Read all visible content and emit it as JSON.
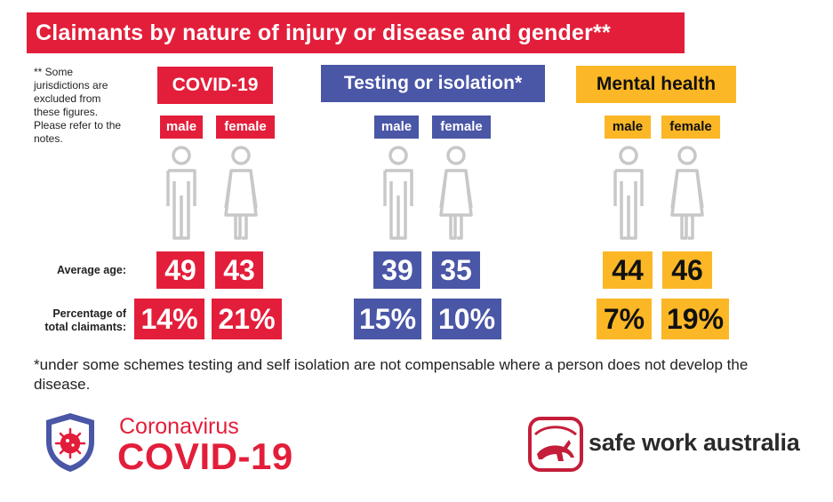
{
  "title": "Claimants by nature of injury or disease and gender**",
  "side_note": "** Some jurisdictions are excluded from these figures. Please refer to the notes.",
  "row_labels": {
    "average_age": "Average age:",
    "percentage": "Percentage of total claimants:"
  },
  "categories": [
    {
      "name": "COVID-19",
      "color": "#e31e3a",
      "male_label": "male",
      "female_label": "female",
      "male_age": "49",
      "female_age": "43",
      "male_pct": "14%",
      "female_pct": "21%"
    },
    {
      "name": "Testing or isolation*",
      "color": "#4a56a6",
      "male_label": "male",
      "female_label": "female",
      "male_age": "39",
      "female_age": "35",
      "male_pct": "15%",
      "female_pct": "10%"
    },
    {
      "name": "Mental health",
      "color": "#fbb726",
      "male_label": "male",
      "female_label": "female",
      "male_age": "44",
      "female_age": "46",
      "male_pct": "7%",
      "female_pct": "19%"
    }
  ],
  "footnote": "*under some schemes testing and self isolation are not compensable where a person does not develop the disease.",
  "covid_logo": {
    "small": "Coronavirus",
    "big": "COVID-19",
    "icon": "virus-shield-icon"
  },
  "brand_logo": {
    "text": "safe work australia",
    "icon": "kangaroo-logo-icon"
  },
  "colors": {
    "red": "#e31e3a",
    "blue": "#4a56a6",
    "yellow": "#fbb726",
    "figure_gray": "#c8c8c8"
  }
}
